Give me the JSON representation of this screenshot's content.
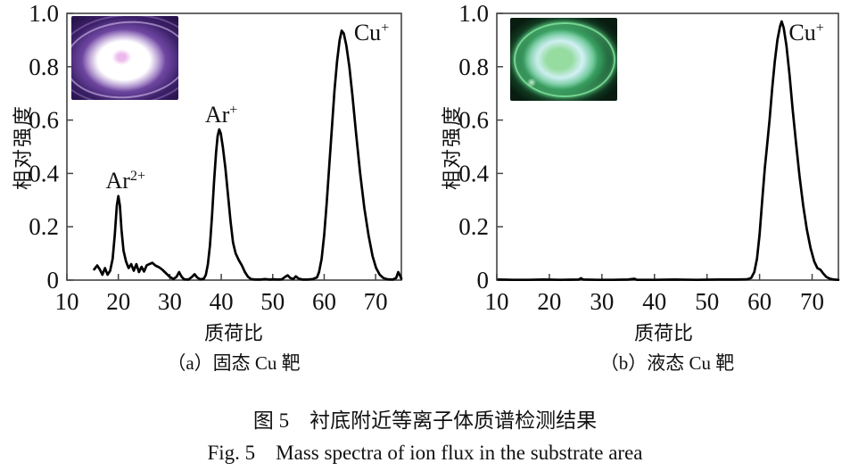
{
  "figure": {
    "caption_zh": "图 5　衬底附近等离子体质谱检测结果",
    "caption_en": "Fig. 5　Mass spectra of ion flux in the substrate area"
  },
  "theme": {
    "css_vars": {
      "--inset-a-bg": "#27134a",
      "--inset-a-mid": "#53318c",
      "--inset-a-halo": "#8a5cb8",
      "--inset-a-glow": "#ffffff",
      "--inset-a-spot": "#ebb9eb",
      "--inset-b-bg": "#081c10",
      "--inset-b-outer": "#1d6238",
      "--inset-b-green": "#46b973",
      "--inset-b-ring": "#d2f0f5",
      "--inset-b-core": "#96dca0"
    }
  },
  "chart_data": [
    {
      "type": "line",
      "panel_label": "（a）固态 Cu 靶",
      "xlabel": "质荷比",
      "ylabel": "相对强度",
      "xlim": [
        10,
        75
      ],
      "ylim": [
        0,
        1.0
      ],
      "xticks": [
        10,
        20,
        30,
        40,
        50,
        60,
        70
      ],
      "xtick_labels": [
        "10",
        "20",
        "30",
        "40",
        "50",
        "60",
        "70"
      ],
      "yticks": [
        0,
        0.2,
        0.4,
        0.6,
        0.8,
        1.0
      ],
      "ytick_labels": [
        "0",
        "0.2",
        "0.4",
        "0.6",
        "0.8",
        "1.0"
      ],
      "grid": false,
      "legend": "none",
      "line_color": "#010101",
      "frame_color": "#444444",
      "annotations": [
        {
          "id": "ar2plus",
          "base": "Ar",
          "sup": "2+",
          "x": 21.4,
          "y": 0.345
        },
        {
          "id": "arplus",
          "base": "Ar",
          "sup": "+",
          "x": 40.0,
          "y": 0.592
        },
        {
          "id": "cuplus",
          "base": "Cu",
          "sup": "+",
          "x": 69.2,
          "y": 0.9
        }
      ],
      "inset_photo": "purple plasma discharge over solid Cu target",
      "series": [
        {
          "name": "固态 Cu 靶",
          "points": [
            [
              15.3,
              0.04
            ],
            [
              15.9,
              0.055
            ],
            [
              16.4,
              0.04
            ],
            [
              16.9,
              0.02
            ],
            [
              17.4,
              0.045
            ],
            [
              17.9,
              0.02
            ],
            [
              18.4,
              0.035
            ],
            [
              18.9,
              0.08
            ],
            [
              19.3,
              0.17
            ],
            [
              19.7,
              0.28
            ],
            [
              20.0,
              0.315
            ],
            [
              20.3,
              0.28
            ],
            [
              20.6,
              0.19
            ],
            [
              21.0,
              0.11
            ],
            [
              21.5,
              0.07
            ],
            [
              22.0,
              0.045
            ],
            [
              22.5,
              0.06
            ],
            [
              23.0,
              0.035
            ],
            [
              23.5,
              0.06
            ],
            [
              24.0,
              0.03
            ],
            [
              24.5,
              0.05
            ],
            [
              25.0,
              0.032
            ],
            [
              25.5,
              0.055
            ],
            [
              26.0,
              0.06
            ],
            [
              26.6,
              0.065
            ],
            [
              27.2,
              0.055
            ],
            [
              27.9,
              0.048
            ],
            [
              28.6,
              0.038
            ],
            [
              29.3,
              0.025
            ],
            [
              30.0,
              0.012
            ],
            [
              30.7,
              0.004
            ],
            [
              31.3,
              0.012
            ],
            [
              31.8,
              0.03
            ],
            [
              32.3,
              0.012
            ],
            [
              32.8,
              0.003
            ],
            [
              33.6,
              0.002
            ],
            [
              34.3,
              0.012
            ],
            [
              34.8,
              0.022
            ],
            [
              35.3,
              0.01
            ],
            [
              35.9,
              0.003
            ],
            [
              36.6,
              0.005
            ],
            [
              37.0,
              0.02
            ],
            [
              37.4,
              0.06
            ],
            [
              37.8,
              0.13
            ],
            [
              38.2,
              0.24
            ],
            [
              38.6,
              0.37
            ],
            [
              39.0,
              0.48
            ],
            [
              39.3,
              0.54
            ],
            [
              39.6,
              0.565
            ],
            [
              39.9,
              0.55
            ],
            [
              40.3,
              0.5
            ],
            [
              40.8,
              0.42
            ],
            [
              41.3,
              0.32
            ],
            [
              41.8,
              0.22
            ],
            [
              42.3,
              0.14
            ],
            [
              42.8,
              0.1
            ],
            [
              43.4,
              0.075
            ],
            [
              44.0,
              0.055
            ],
            [
              44.6,
              0.03
            ],
            [
              45.2,
              0.012
            ],
            [
              45.8,
              0.004
            ],
            [
              46.6,
              0.002
            ],
            [
              47.6,
              0.002
            ],
            [
              48.5,
              0.004
            ],
            [
              49.4,
              0.002
            ],
            [
              50.2,
              0.003
            ],
            [
              51.0,
              0.002
            ],
            [
              51.8,
              0.003
            ],
            [
              52.4,
              0.012
            ],
            [
              52.9,
              0.018
            ],
            [
              53.4,
              0.008
            ],
            [
              54.0,
              0.004
            ],
            [
              54.5,
              0.014
            ],
            [
              55.0,
              0.006
            ],
            [
              55.8,
              0.002
            ],
            [
              56.8,
              0.002
            ],
            [
              57.8,
              0.004
            ],
            [
              58.6,
              0.01
            ],
            [
              59.0,
              0.03
            ],
            [
              59.5,
              0.08
            ],
            [
              60.0,
              0.17
            ],
            [
              60.5,
              0.29
            ],
            [
              61.0,
              0.43
            ],
            [
              61.5,
              0.57
            ],
            [
              62.0,
              0.71
            ],
            [
              62.5,
              0.82
            ],
            [
              63.0,
              0.9
            ],
            [
              63.4,
              0.935
            ],
            [
              63.8,
              0.925
            ],
            [
              64.3,
              0.88
            ],
            [
              64.9,
              0.8
            ],
            [
              65.5,
              0.69
            ],
            [
              66.2,
              0.55
            ],
            [
              67.0,
              0.4
            ],
            [
              67.8,
              0.27
            ],
            [
              68.6,
              0.17
            ],
            [
              69.4,
              0.09
            ],
            [
              70.1,
              0.045
            ],
            [
              70.8,
              0.02
            ],
            [
              71.5,
              0.008
            ],
            [
              72.3,
              0.003
            ],
            [
              73.3,
              0.002
            ],
            [
              74.0,
              0.008
            ],
            [
              74.4,
              0.03
            ],
            [
              74.8,
              0.015
            ],
            [
              75.0,
              0.005
            ]
          ]
        }
      ]
    },
    {
      "type": "line",
      "panel_label": "（b）液态 Cu 靶",
      "xlabel": "质荷比",
      "ylabel": "相对强度",
      "xlim": [
        10,
        75
      ],
      "ylim": [
        0,
        1.0
      ],
      "xticks": [
        10,
        20,
        30,
        40,
        50,
        60,
        70
      ],
      "xtick_labels": [
        "10",
        "20",
        "30",
        "40",
        "50",
        "60",
        "70"
      ],
      "yticks": [
        0,
        0.2,
        0.4,
        0.6,
        0.8,
        1.0
      ],
      "ytick_labels": [
        "0",
        "0.2",
        "0.4",
        "0.6",
        "0.8",
        "1.0"
      ],
      "grid": false,
      "legend": "none",
      "line_color": "#010101",
      "frame_color": "#444444",
      "annotations": [
        {
          "id": "cuplus",
          "base": "Cu",
          "sup": "+",
          "x": 68.9,
          "y": 0.9
        }
      ],
      "inset_photo": "green plasma discharge over liquid Cu target",
      "series": [
        {
          "name": "液态 Cu 靶",
          "points": [
            [
              10.3,
              0.002
            ],
            [
              13.0,
              0.001
            ],
            [
              16.0,
              0.001
            ],
            [
              19.0,
              0.002
            ],
            [
              22.0,
              0.001
            ],
            [
              25.6,
              0.002
            ],
            [
              26.0,
              0.007
            ],
            [
              26.5,
              0.002
            ],
            [
              29.0,
              0.001
            ],
            [
              32.0,
              0.001
            ],
            [
              35.0,
              0.002
            ],
            [
              36.2,
              0.005
            ],
            [
              36.7,
              0.001
            ],
            [
              40.0,
              0.001
            ],
            [
              44.0,
              0.002
            ],
            [
              48.0,
              0.001
            ],
            [
              52.0,
              0.002
            ],
            [
              55.5,
              0.002
            ],
            [
              57.6,
              0.003
            ],
            [
              58.4,
              0.008
            ],
            [
              59.0,
              0.03
            ],
            [
              59.5,
              0.08
            ],
            [
              60.0,
              0.17
            ],
            [
              60.5,
              0.3
            ],
            [
              61.0,
              0.42
            ],
            [
              61.4,
              0.5
            ],
            [
              61.9,
              0.6
            ],
            [
              62.4,
              0.72
            ],
            [
              62.9,
              0.82
            ],
            [
              63.4,
              0.9
            ],
            [
              63.9,
              0.952
            ],
            [
              64.2,
              0.97
            ],
            [
              64.6,
              0.945
            ],
            [
              65.1,
              0.88
            ],
            [
              65.7,
              0.77
            ],
            [
              66.3,
              0.64
            ],
            [
              66.9,
              0.52
            ],
            [
              67.6,
              0.39
            ],
            [
              68.3,
              0.28
            ],
            [
              69.0,
              0.19
            ],
            [
              69.7,
              0.12
            ],
            [
              70.4,
              0.07
            ],
            [
              71.0,
              0.045
            ],
            [
              71.6,
              0.038
            ],
            [
              72.1,
              0.025
            ],
            [
              72.7,
              0.012
            ],
            [
              73.4,
              0.005
            ],
            [
              74.2,
              0.002
            ],
            [
              75.0,
              0.001
            ]
          ]
        }
      ]
    }
  ]
}
